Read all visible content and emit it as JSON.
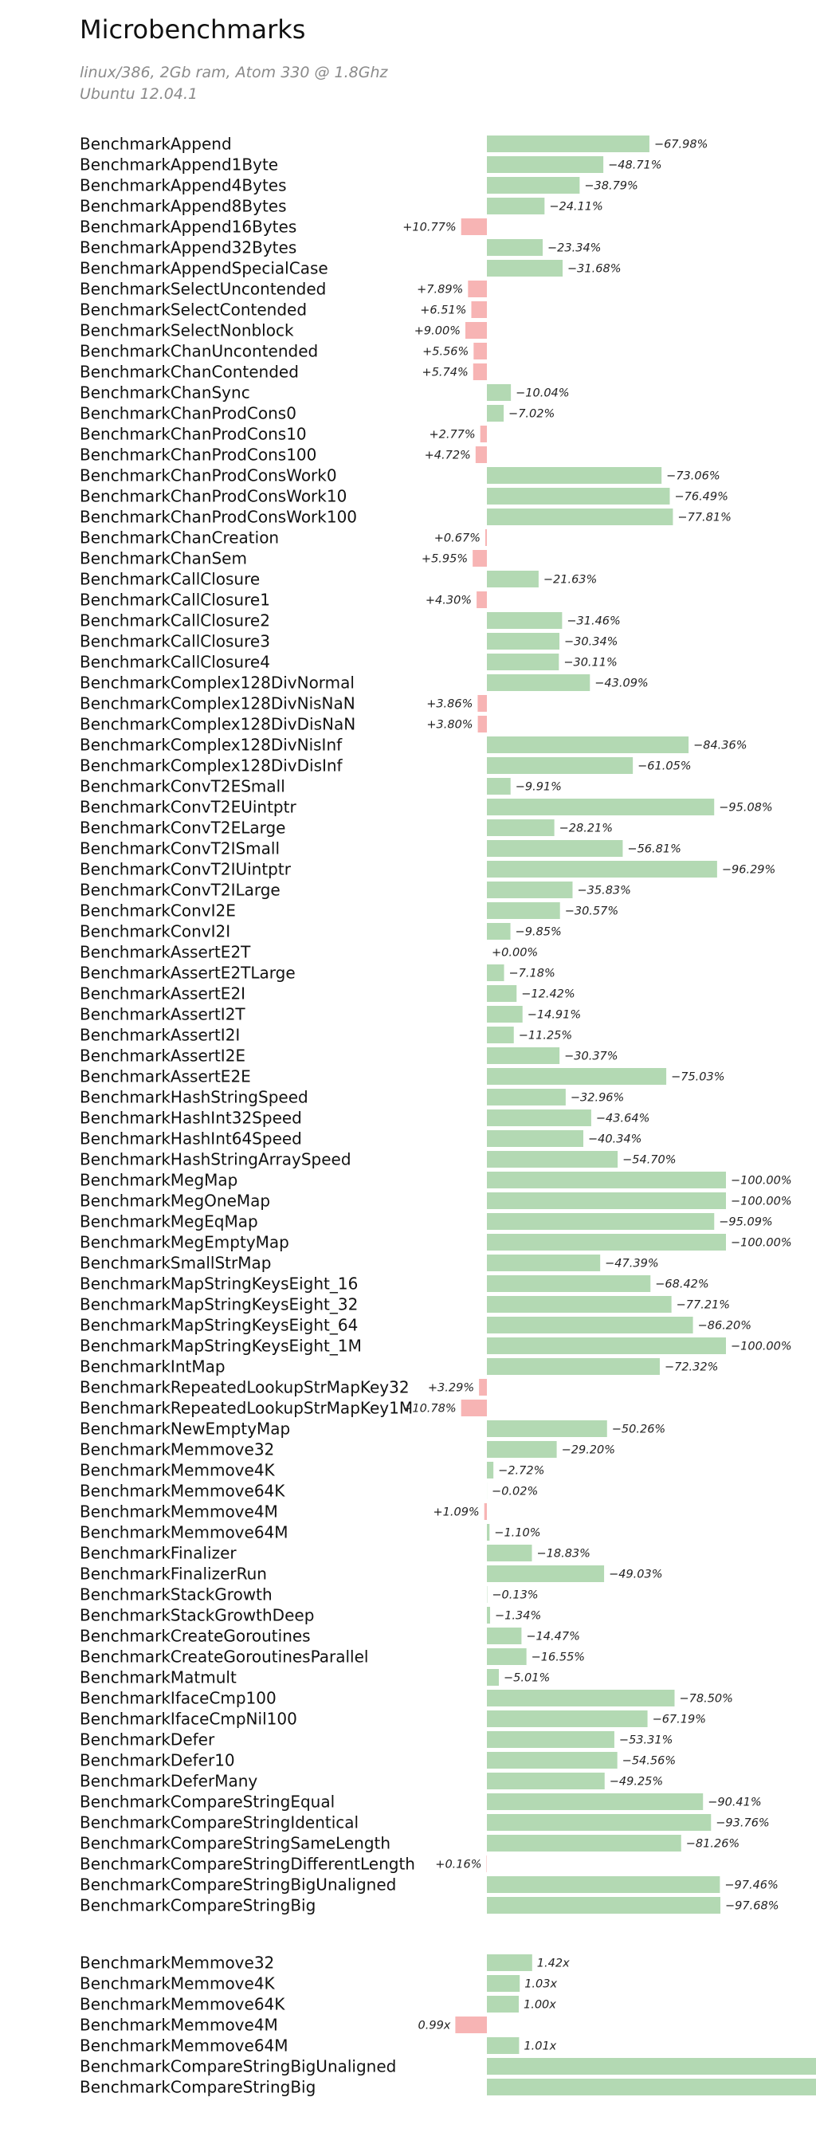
{
  "page": {
    "title": "Microbenchmarks",
    "subtitle_line1": "linux/386, 2Gb ram, Atom 330 @ 1.8Ghz",
    "subtitle_line2": "Ubuntu 12.04.1"
  },
  "colors": {
    "decrease": "#b3d9b3",
    "increase": "#f7b4b4",
    "text": "#111111"
  },
  "chart_data": [
    {
      "type": "bar",
      "orientation": "horizontal",
      "unit": "percent_change",
      "categories": [
        "BenchmarkAppend",
        "BenchmarkAppend1Byte",
        "BenchmarkAppend4Bytes",
        "BenchmarkAppend8Bytes",
        "BenchmarkAppend16Bytes",
        "BenchmarkAppend32Bytes",
        "BenchmarkAppendSpecialCase",
        "BenchmarkSelectUncontended",
        "BenchmarkSelectContended",
        "BenchmarkSelectNonblock",
        "BenchmarkChanUncontended",
        "BenchmarkChanContended",
        "BenchmarkChanSync",
        "BenchmarkChanProdCons0",
        "BenchmarkChanProdCons10",
        "BenchmarkChanProdCons100",
        "BenchmarkChanProdConsWork0",
        "BenchmarkChanProdConsWork10",
        "BenchmarkChanProdConsWork100",
        "BenchmarkChanCreation",
        "BenchmarkChanSem",
        "BenchmarkCallClosure",
        "BenchmarkCallClosure1",
        "BenchmarkCallClosure2",
        "BenchmarkCallClosure3",
        "BenchmarkCallClosure4",
        "BenchmarkComplex128DivNormal",
        "BenchmarkComplex128DivNisNaN",
        "BenchmarkComplex128DivDisNaN",
        "BenchmarkComplex128DivNisInf",
        "BenchmarkComplex128DivDisInf",
        "BenchmarkConvT2ESmall",
        "BenchmarkConvT2EUintptr",
        "BenchmarkConvT2ELarge",
        "BenchmarkConvT2ISmall",
        "BenchmarkConvT2IUintptr",
        "BenchmarkConvT2ILarge",
        "BenchmarkConvI2E",
        "BenchmarkConvI2I",
        "BenchmarkAssertE2T",
        "BenchmarkAssertE2TLarge",
        "BenchmarkAssertE2I",
        "BenchmarkAssertI2T",
        "BenchmarkAssertI2I",
        "BenchmarkAssertI2E",
        "BenchmarkAssertE2E",
        "BenchmarkHashStringSpeed",
        "BenchmarkHashInt32Speed",
        "BenchmarkHashInt64Speed",
        "BenchmarkHashStringArraySpeed",
        "BenchmarkMegMap",
        "BenchmarkMegOneMap",
        "BenchmarkMegEqMap",
        "BenchmarkMegEmptyMap",
        "BenchmarkSmallStrMap",
        "BenchmarkMapStringKeysEight_16",
        "BenchmarkMapStringKeysEight_32",
        "BenchmarkMapStringKeysEight_64",
        "BenchmarkMapStringKeysEight_1M",
        "BenchmarkIntMap",
        "BenchmarkRepeatedLookupStrMapKey32",
        "BenchmarkRepeatedLookupStrMapKey1M",
        "BenchmarkNewEmptyMap",
        "BenchmarkMemmove32",
        "BenchmarkMemmove4K",
        "BenchmarkMemmove64K",
        "BenchmarkMemmove4M",
        "BenchmarkMemmove64M",
        "BenchmarkFinalizer",
        "BenchmarkFinalizerRun",
        "BenchmarkStackGrowth",
        "BenchmarkStackGrowthDeep",
        "BenchmarkCreateGoroutines",
        "BenchmarkCreateGoroutinesParallel",
        "BenchmarkMatmult",
        "BenchmarkIfaceCmp100",
        "BenchmarkIfaceCmpNil100",
        "BenchmarkDefer",
        "BenchmarkDefer10",
        "BenchmarkDeferMany",
        "BenchmarkCompareStringEqual",
        "BenchmarkCompareStringIdentical",
        "BenchmarkCompareStringSameLength",
        "BenchmarkCompareStringDifferentLength",
        "BenchmarkCompareStringBigUnaligned",
        "BenchmarkCompareStringBig"
      ],
      "values": [
        -67.98,
        -48.71,
        -38.79,
        -24.11,
        10.77,
        -23.34,
        -31.68,
        7.89,
        6.51,
        9.0,
        5.56,
        5.74,
        -10.04,
        -7.02,
        2.77,
        4.72,
        -73.06,
        -76.49,
        -77.81,
        0.67,
        5.95,
        -21.63,
        4.3,
        -31.46,
        -30.34,
        -30.11,
        -43.09,
        3.86,
        3.8,
        -84.36,
        -61.05,
        -9.91,
        -95.08,
        -28.21,
        -56.81,
        -96.29,
        -35.83,
        -30.57,
        -9.85,
        0.0,
        -7.18,
        -12.42,
        -14.91,
        -11.25,
        -30.37,
        -75.03,
        -32.96,
        -43.64,
        -40.34,
        -54.7,
        -100.0,
        -100.0,
        -95.09,
        -100.0,
        -47.39,
        -68.42,
        -77.21,
        -86.2,
        -100.0,
        -72.32,
        3.29,
        10.78,
        -50.26,
        -29.2,
        -2.72,
        -0.02,
        1.09,
        -1.1,
        -18.83,
        -49.03,
        -0.13,
        -1.34,
        -14.47,
        -16.55,
        -5.01,
        -78.5,
        -67.19,
        -53.31,
        -54.56,
        -49.25,
        -90.41,
        -93.76,
        -81.26,
        0.16,
        -97.46,
        -97.68
      ],
      "value_labels": [
        "−67.98%",
        "−48.71%",
        "−38.79%",
        "−24.11%",
        "+10.77%",
        "−23.34%",
        "−31.68%",
        "+7.89%",
        "+6.51%",
        "+9.00%",
        "+5.56%",
        "+5.74%",
        "−10.04%",
        "−7.02%",
        "+2.77%",
        "+4.72%",
        "−73.06%",
        "−76.49%",
        "−77.81%",
        "+0.67%",
        "+5.95%",
        "−21.63%",
        "+4.30%",
        "−31.46%",
        "−30.34%",
        "−30.11%",
        "−43.09%",
        "+3.86%",
        "+3.80%",
        "−84.36%",
        "−61.05%",
        "−9.91%",
        "−95.08%",
        "−28.21%",
        "−56.81%",
        "−96.29%",
        "−35.83%",
        "−30.57%",
        "−9.85%",
        "+0.00%",
        "−7.18%",
        "−12.42%",
        "−14.91%",
        "−11.25%",
        "−30.37%",
        "−75.03%",
        "−32.96%",
        "−43.64%",
        "−40.34%",
        "−54.70%",
        "−100.00%",
        "−100.00%",
        "−95.09%",
        "−100.00%",
        "−47.39%",
        "−68.42%",
        "−77.21%",
        "−86.20%",
        "−100.00%",
        "−72.32%",
        "+3.29%",
        "+10.78%",
        "−50.26%",
        "−29.20%",
        "−2.72%",
        "−0.02%",
        "+1.09%",
        "−1.10%",
        "−18.83%",
        "−49.03%",
        "−0.13%",
        "−1.34%",
        "−14.47%",
        "−16.55%",
        "−5.01%",
        "−78.50%",
        "−67.19%",
        "−53.31%",
        "−54.56%",
        "−49.25%",
        "−90.41%",
        "−93.76%",
        "−81.26%",
        "+0.16%",
        "−97.46%",
        "−97.68%"
      ]
    },
    {
      "type": "bar",
      "orientation": "horizontal",
      "unit": "ratio",
      "categories": [
        "BenchmarkMemmove32",
        "BenchmarkMemmove4K",
        "BenchmarkMemmove64K",
        "BenchmarkMemmove4M",
        "BenchmarkMemmove64M",
        "BenchmarkCompareStringBigUnaligned",
        "BenchmarkCompareStringBig"
      ],
      "values": [
        1.42,
        1.03,
        1.0,
        0.99,
        1.01,
        30,
        30
      ],
      "value_labels": [
        "1.42x",
        "1.03x",
        "1.00x",
        "0.99x",
        "1.01x",
        "",
        ""
      ]
    }
  ]
}
